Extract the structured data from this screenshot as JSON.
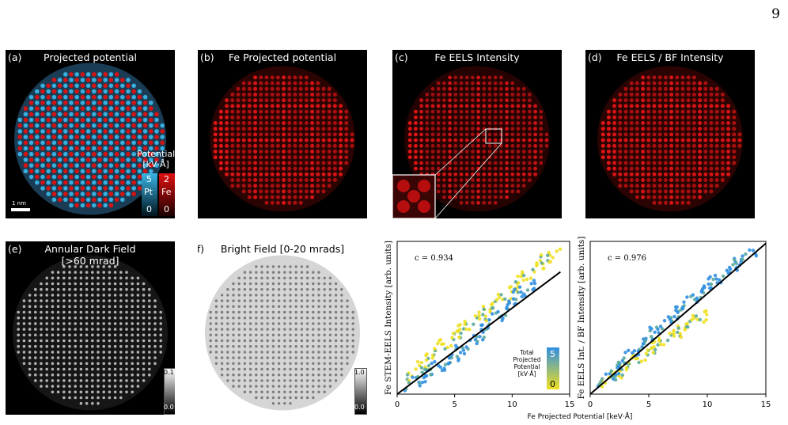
{
  "page_number": "9",
  "panels": {
    "a": {
      "label": "(a)",
      "title": "Projected potential",
      "legend_title_line1": "Potential",
      "legend_title_line2": "[kV·Å]",
      "pt_max": "5",
      "fe_max": "2",
      "pt_label": "Pt",
      "fe_label": "Fe",
      "pt_min": "0",
      "fe_min": "0",
      "scale_label": "1 nm",
      "colors": {
        "pt": "#3ab5e6",
        "fe": "#e01010"
      }
    },
    "b": {
      "label": "(b)",
      "title": "Fe Projected potential"
    },
    "c": {
      "label": "(c)",
      "title": "Fe EELS Intensity"
    },
    "d": {
      "label": "(d)",
      "title": "Fe EELS / BF Intensity"
    },
    "e": {
      "label": "(e)",
      "title_line1": "Annular Dark Field",
      "title_line2": "[>60 mrad]",
      "cbar_max": "0.1",
      "cbar_min": "0.0"
    },
    "f": {
      "label": "(f)",
      "title": "Bright Field [0-20 mrads]",
      "cbar_max": "1.0",
      "cbar_min": "0.0"
    }
  },
  "chart_data": [
    {
      "type": "scatter",
      "annotation": "c = 0.934",
      "ylabel": "Fe STEM-EELS Intensity [arb. units]",
      "xlabel": "",
      "xlim": [
        0,
        15
      ],
      "xticks": [
        "0",
        "5",
        "10",
        "15"
      ],
      "fit_line": {
        "x": [
          0,
          14.2
        ],
        "y": [
          0,
          9.6
        ]
      },
      "colorbar": {
        "title_lines": [
          "Total",
          "Projected",
          "Potential",
          "[kV·Å]"
        ],
        "max": "5",
        "min": "0",
        "colors": [
          "#f0e020",
          "#2f8fe0"
        ]
      },
      "series": [
        {
          "color": "low",
          "x": [
            1,
            2,
            3,
            4,
            5,
            6,
            7,
            8,
            9,
            10,
            11,
            12,
            13,
            14
          ],
          "y": [
            1.2,
            2.1,
            3.0,
            3.8,
            4.6,
            5.2,
            5.9,
            6.6,
            7.3,
            8.2,
            9.0,
            9.9,
            10.6,
            11.0
          ]
        },
        {
          "color": "high",
          "x": [
            1,
            2,
            3,
            4,
            5,
            6,
            7,
            8,
            9,
            10,
            11,
            12
          ],
          "y": [
            0.7,
            1.3,
            1.9,
            2.4,
            3.0,
            3.8,
            4.6,
            5.5,
            6.4,
            7.3,
            8.2,
            8.7
          ]
        }
      ]
    },
    {
      "type": "scatter",
      "annotation": "c = 0.976",
      "ylabel": "Fe EELS Int. / BF Intensity [arb. units]",
      "xlabel": "",
      "xlim": [
        0,
        15
      ],
      "xticks": [
        "0",
        "5",
        "10",
        "15"
      ],
      "fit_line": {
        "x": [
          0,
          15
        ],
        "y": [
          0,
          15
        ]
      },
      "series": [
        {
          "color": "low",
          "x": [
            1,
            2,
            3,
            4,
            5,
            6,
            7,
            8,
            9,
            10
          ],
          "y": [
            0.9,
            1.8,
            2.6,
            3.4,
            4.2,
            5.0,
            5.8,
            6.5,
            7.3,
            8.0
          ]
        },
        {
          "color": "high",
          "x": [
            1,
            2,
            3,
            4,
            5,
            6,
            7,
            8,
            9,
            10,
            11,
            12,
            13,
            14
          ],
          "y": [
            1.2,
            2.3,
            3.4,
            4.6,
            5.7,
            6.8,
            7.8,
            8.8,
            9.8,
            10.8,
            11.6,
            12.6,
            13.4,
            14.3
          ]
        }
      ]
    }
  ],
  "shared_xlabel": "Fe Projected Potential [keV·Å]"
}
